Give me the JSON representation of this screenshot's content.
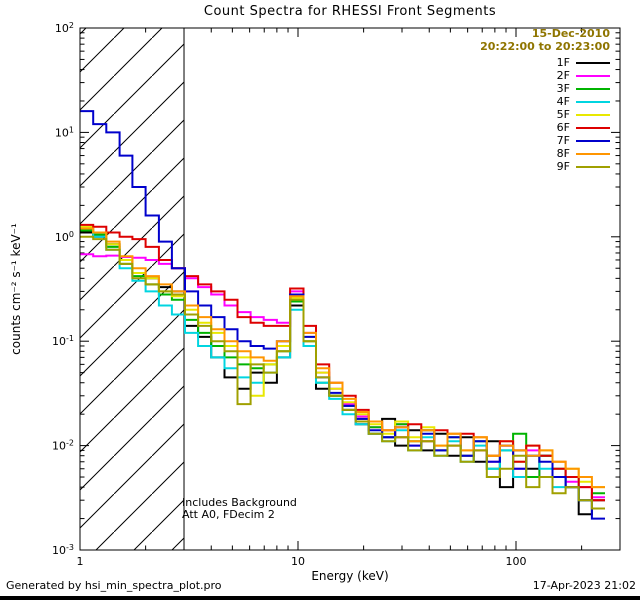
{
  "title": "Count Spectra for RHESSI Front Segments",
  "annotations": {
    "date": "15-Dec-2010",
    "time_range": "20:22:00 to 20:23:00",
    "date_color": "#8f7500",
    "note1": "Includes Background",
    "note2": "Att A0, FDecim 2"
  },
  "footer": {
    "left": "Generated by hsi_min_spectra_plot.pro",
    "right": "17-Apr-2023 21:02"
  },
  "chart_data": {
    "type": "line",
    "subtype": "step-histogram-loglog",
    "title": "Count Spectra for RHESSI Front Segments",
    "xlabel": "Energy (keV)",
    "ylabel": "counts cm⁻² s⁻¹ keV⁻¹",
    "xlim": [
      1,
      300
    ],
    "ylim": [
      0.001,
      100
    ],
    "xscale": "log",
    "yscale": "log",
    "x_ticks": [
      1,
      10,
      100
    ],
    "y_tick_exponents": [
      2,
      1,
      0,
      -1,
      -2,
      -3
    ],
    "hatch_region": {
      "x0": 1,
      "x1": 3
    },
    "legend_position": "top-right",
    "x_edges": [
      1.0,
      1.15,
      1.32,
      1.52,
      1.74,
      2.0,
      2.3,
      2.64,
      3.03,
      3.48,
      4.0,
      4.6,
      5.28,
      6.06,
      6.96,
      8.0,
      9.2,
      10.6,
      12.1,
      13.9,
      16.0,
      18.4,
      21.1,
      24.3,
      27.9,
      32.0,
      36.8,
      42.2,
      48.5,
      55.7,
      64.0,
      73.5,
      84.4,
      97.0,
      111.4,
      128.0,
      147.0,
      168.9,
      194.0,
      222.9,
      256.0
    ],
    "series": [
      {
        "name": "1F",
        "color": "#000000",
        "values": [
          1.1,
          1.0,
          0.85,
          0.6,
          0.45,
          0.4,
          0.33,
          0.3,
          0.14,
          0.11,
          0.07,
          0.045,
          0.035,
          0.05,
          0.04,
          0.07,
          0.22,
          0.09,
          0.035,
          0.03,
          0.022,
          0.016,
          0.013,
          0.018,
          0.01,
          0.014,
          0.009,
          0.013,
          0.008,
          0.012,
          0.007,
          0.011,
          0.004,
          0.009,
          0.006,
          0.008,
          0.005,
          0.004,
          0.0022,
          0.003
        ]
      },
      {
        "name": "2F",
        "color": "#ff00ff",
        "values": [
          0.68,
          0.65,
          0.66,
          0.64,
          0.63,
          0.6,
          0.55,
          0.5,
          0.4,
          0.33,
          0.28,
          0.22,
          0.19,
          0.17,
          0.16,
          0.15,
          0.3,
          0.12,
          0.05,
          0.035,
          0.025,
          0.019,
          0.015,
          0.012,
          0.016,
          0.01,
          0.014,
          0.009,
          0.013,
          0.008,
          0.012,
          0.007,
          0.01,
          0.006,
          0.009,
          0.005,
          0.007,
          0.0045,
          0.004,
          0.0032
        ]
      },
      {
        "name": "3F",
        "color": "#00b400",
        "values": [
          1.15,
          1.05,
          0.8,
          0.55,
          0.42,
          0.35,
          0.28,
          0.25,
          0.16,
          0.12,
          0.09,
          0.07,
          0.06,
          0.055,
          0.06,
          0.08,
          0.24,
          0.1,
          0.04,
          0.03,
          0.024,
          0.018,
          0.015,
          0.012,
          0.016,
          0.011,
          0.014,
          0.009,
          0.012,
          0.008,
          0.011,
          0.006,
          0.009,
          0.013,
          0.005,
          0.008,
          0.006,
          0.004,
          0.003,
          0.0035
        ]
      },
      {
        "name": "4F",
        "color": "#00d5e0",
        "values": [
          1.2,
          1.0,
          0.75,
          0.5,
          0.38,
          0.3,
          0.22,
          0.18,
          0.12,
          0.09,
          0.07,
          0.055,
          0.045,
          0.04,
          0.05,
          0.07,
          0.2,
          0.09,
          0.04,
          0.028,
          0.02,
          0.016,
          0.013,
          0.011,
          0.014,
          0.009,
          0.012,
          0.008,
          0.011,
          0.007,
          0.01,
          0.006,
          0.009,
          0.005,
          0.008,
          0.006,
          0.004,
          0.005,
          0.003,
          0.0025
        ]
      },
      {
        "name": "5F",
        "color": "#e8e800",
        "values": [
          1.25,
          1.1,
          0.85,
          0.6,
          0.45,
          0.4,
          0.3,
          0.27,
          0.2,
          0.15,
          0.12,
          0.09,
          0.07,
          0.03,
          0.06,
          0.09,
          0.26,
          0.11,
          0.05,
          0.035,
          0.026,
          0.02,
          0.016,
          0.013,
          0.017,
          0.012,
          0.015,
          0.01,
          0.013,
          0.009,
          0.012,
          0.008,
          0.011,
          0.007,
          0.01,
          0.009,
          0.007,
          0.006,
          0.0045,
          0.004
        ]
      },
      {
        "name": "6F",
        "color": "#dd0000",
        "values": [
          1.3,
          1.25,
          1.1,
          1.0,
          0.95,
          0.8,
          0.6,
          0.5,
          0.42,
          0.35,
          0.3,
          0.25,
          0.17,
          0.15,
          0.14,
          0.14,
          0.32,
          0.14,
          0.06,
          0.04,
          0.03,
          0.022,
          0.017,
          0.014,
          0.012,
          0.016,
          0.011,
          0.014,
          0.01,
          0.013,
          0.009,
          0.008,
          0.011,
          0.007,
          0.01,
          0.008,
          0.006,
          0.005,
          0.004,
          0.003
        ]
      },
      {
        "name": "7F",
        "color": "#0000cc",
        "values": [
          16,
          12,
          10,
          6,
          3,
          1.6,
          0.9,
          0.5,
          0.3,
          0.22,
          0.17,
          0.13,
          0.1,
          0.09,
          0.085,
          0.1,
          0.28,
          0.11,
          0.045,
          0.032,
          0.024,
          0.018,
          0.014,
          0.012,
          0.015,
          0.01,
          0.013,
          0.009,
          0.012,
          0.008,
          0.011,
          0.007,
          0.01,
          0.006,
          0.008,
          0.007,
          0.005,
          0.004,
          0.003,
          0.002
        ]
      },
      {
        "name": "8F",
        "color": "#ff9500",
        "values": [
          1.2,
          1.1,
          0.9,
          0.65,
          0.5,
          0.42,
          0.35,
          0.3,
          0.22,
          0.17,
          0.13,
          0.1,
          0.08,
          0.07,
          0.065,
          0.1,
          0.27,
          0.12,
          0.055,
          0.04,
          0.028,
          0.021,
          0.017,
          0.014,
          0.015,
          0.011,
          0.014,
          0.01,
          0.013,
          0.009,
          0.012,
          0.008,
          0.01,
          0.009,
          0.008,
          0.009,
          0.007,
          0.006,
          0.005,
          0.004
        ]
      },
      {
        "name": "9F",
        "color": "#a0a000",
        "values": [
          1.0,
          0.95,
          0.75,
          0.55,
          0.4,
          0.35,
          0.3,
          0.28,
          0.18,
          0.14,
          0.1,
          0.08,
          0.025,
          0.06,
          0.05,
          0.08,
          0.25,
          0.1,
          0.045,
          0.03,
          0.022,
          0.017,
          0.013,
          0.011,
          0.012,
          0.009,
          0.011,
          0.008,
          0.01,
          0.007,
          0.009,
          0.005,
          0.006,
          0.008,
          0.004,
          0.005,
          0.0035,
          0.004,
          0.003,
          0.0025
        ]
      }
    ]
  }
}
